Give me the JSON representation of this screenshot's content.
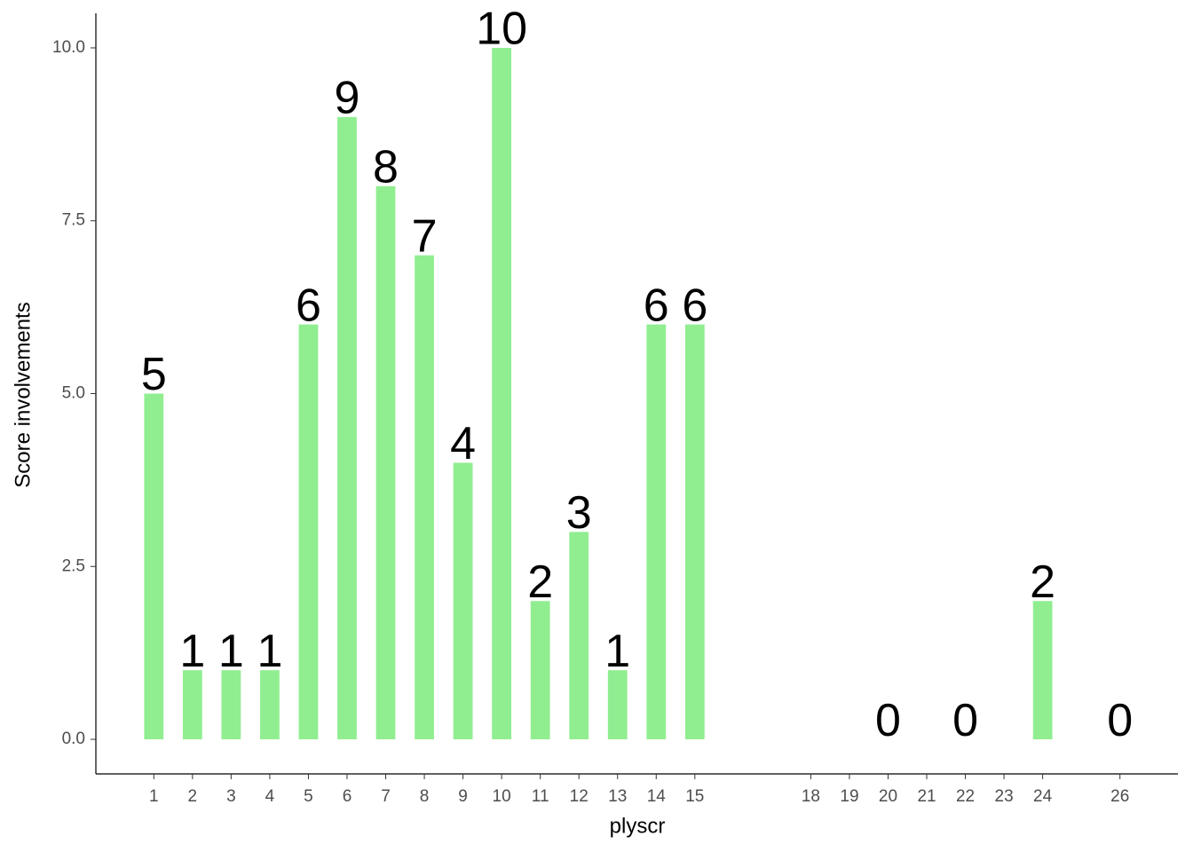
{
  "chart_data": {
    "type": "bar",
    "x_label": "plyscr",
    "y_label": "Score involvements",
    "x": [
      1,
      2,
      3,
      4,
      5,
      6,
      7,
      8,
      9,
      10,
      11,
      12,
      13,
      14,
      15,
      20,
      22,
      24,
      26
    ],
    "values": [
      5,
      1,
      1,
      1,
      6,
      9,
      8,
      7,
      4,
      10,
      2,
      3,
      1,
      6,
      6,
      0,
      0,
      2,
      0
    ],
    "color": "#90ee90",
    "xlim": [
      -0.5,
      27.5
    ],
    "xticks": [
      1,
      2,
      3,
      4,
      5,
      6,
      7,
      8,
      9,
      10,
      11,
      12,
      13,
      14,
      15,
      18,
      19,
      20,
      21,
      22,
      23,
      24,
      26
    ],
    "ylim": [
      -0.5,
      10.5
    ],
    "yticks": [
      {
        "value": 0,
        "label": "0.0"
      },
      {
        "value": 2.5,
        "label": "2.5"
      },
      {
        "value": 5,
        "label": "5.0"
      },
      {
        "value": 7.5,
        "label": "7.5"
      },
      {
        "value": 10,
        "label": "10.0"
      }
    ],
    "grid": false
  }
}
